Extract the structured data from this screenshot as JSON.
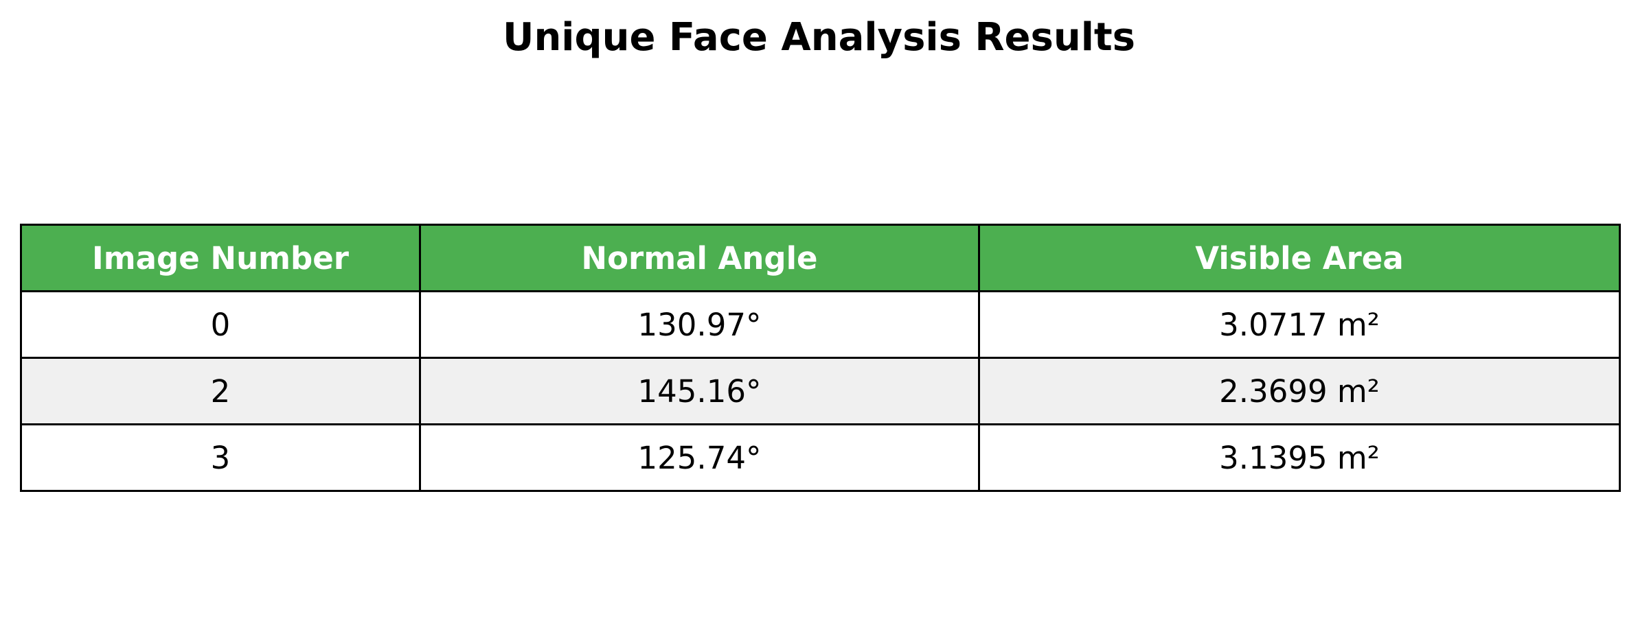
{
  "chart_data": {
    "type": "table",
    "title": "Unique Face Analysis Results",
    "columns": [
      "Image Number",
      "Normal Angle",
      "Visible Area"
    ],
    "rows": [
      [
        "0",
        "130.97°",
        "3.0717 m²"
      ],
      [
        "2",
        "145.16°",
        "2.3699 m²"
      ],
      [
        "3",
        "125.74°",
        "3.1395 m²"
      ]
    ],
    "header_color": "#4caf50",
    "row_colors": [
      "#ffffff",
      "#f0f0f0",
      "#ffffff"
    ]
  }
}
